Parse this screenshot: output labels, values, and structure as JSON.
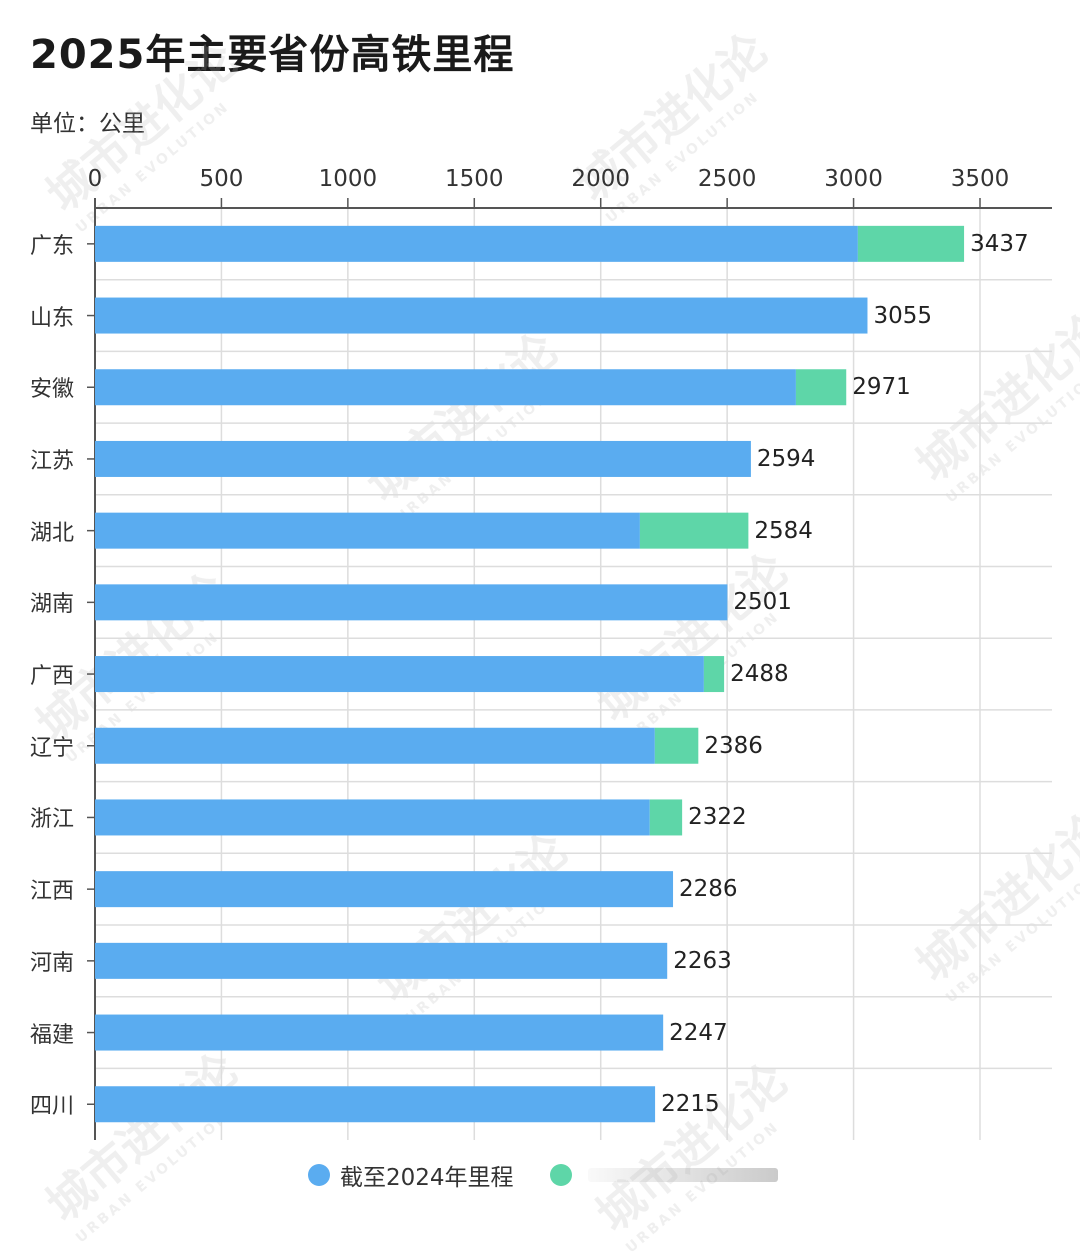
{
  "header": {
    "title": "2025年主要省份高铁里程",
    "unit": "单位：公里"
  },
  "legend": [
    {
      "label": "截至2024年里程",
      "color": "#5aacf0"
    },
    {
      "label": "",
      "color": "#5ed6a8",
      "note": "label obscured"
    }
  ],
  "watermark": {
    "text": "城市进化论",
    "sub": "URBAN EVOLUTION"
  },
  "colors": {
    "base": "#5aacf0",
    "added": "#5ed6a8",
    "grid": "#dddddd",
    "axis": "#555555"
  },
  "chart_data": {
    "type": "bar",
    "orientation": "horizontal",
    "stacked": true,
    "title": "2025年主要省份高铁里程",
    "subtitle": "单位：公里",
    "xlabel": "",
    "ylabel": "",
    "xlim": [
      0,
      3800
    ],
    "xticks": [
      0,
      500,
      1000,
      1500,
      2000,
      2500,
      3000,
      3500
    ],
    "x_axis_position": "top",
    "grid": true,
    "legend_position": "bottom",
    "categories": [
      "广东",
      "山东",
      "安徽",
      "江苏",
      "湖北",
      "湖南",
      "广西",
      "辽宁",
      "浙江",
      "江西",
      "河南",
      "福建",
      "四川"
    ],
    "series": [
      {
        "name": "截至2024年里程",
        "color": "#5aacf0",
        "values": [
          3017,
          3055,
          2772,
          2594,
          2155,
          2501,
          2408,
          2214,
          2194,
          2286,
          2263,
          2247,
          2215
        ]
      },
      {
        "name": "(2025年新增, label obscured)",
        "color": "#5ed6a8",
        "values": [
          420,
          0,
          199,
          0,
          429,
          0,
          80,
          172,
          128,
          0,
          0,
          0,
          0
        ]
      }
    ],
    "totals": [
      3437,
      3055,
      2971,
      2594,
      2584,
      2501,
      2488,
      2386,
      2322,
      2286,
      2263,
      2247,
      2215
    ]
  }
}
